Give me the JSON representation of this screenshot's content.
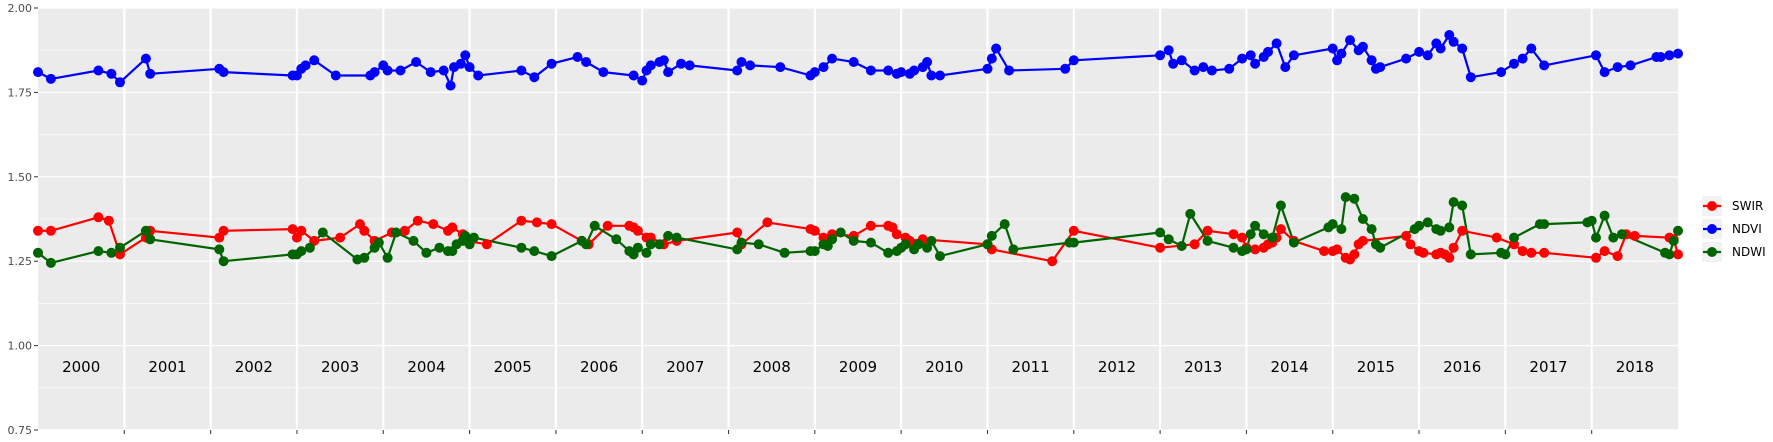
{
  "chart_data": {
    "type": "line",
    "title": "",
    "xlabel": "",
    "ylabel": "",
    "ylim": [
      0.75,
      2.0
    ],
    "yticks": [
      "0.75",
      "1.00",
      "1.25",
      "1.50",
      "1.75",
      "2.00"
    ],
    "xlim": [
      2000.0,
      2019.0
    ],
    "years": [
      "2000",
      "2001",
      "2002",
      "2003",
      "2004",
      "2005",
      "2006",
      "2007",
      "2008",
      "2009",
      "2010",
      "2011",
      "2012",
      "2013",
      "2014",
      "2015",
      "2016",
      "2017",
      "2018"
    ],
    "grid": true,
    "legend_position": "right",
    "series": [
      {
        "name": "SWIR",
        "color": "#ff0000",
        "x": [
          2000.0,
          2000.15,
          2000.7,
          2000.82,
          2000.95,
          2001.25,
          2001.3,
          2002.1,
          2002.15,
          2002.95,
          2003.0,
          2003.05,
          2003.2,
          2003.5,
          2003.73,
          2003.78,
          2003.9,
          2004.1,
          2004.25,
          2004.4,
          2004.58,
          2004.75,
          2004.8,
          2004.92,
          2004.97,
          2005.2,
          2005.6,
          2005.78,
          2005.95,
          2006.3,
          2006.38,
          2006.6,
          2006.85,
          2006.9,
          2006.95,
          2007.05,
          2007.1,
          2007.25,
          2007.4,
          2008.1,
          2008.15,
          2008.45,
          2008.95,
          2009.0,
          2009.1,
          2009.2,
          2009.45,
          2009.65,
          2009.85,
          2009.9,
          2009.95,
          2010.05,
          2010.1,
          2010.25,
          2011.0,
          2011.05,
          2011.75,
          2012.0,
          2013.0,
          2013.4,
          2013.55,
          2013.85,
          2013.95,
          2014.0,
          2014.1,
          2014.2,
          2014.25,
          2014.3,
          2014.35,
          2014.4,
          2014.55,
          2014.9,
          2015.0,
          2015.05,
          2015.15,
          2015.2,
          2015.25,
          2015.3,
          2015.35,
          2015.85,
          2015.9,
          2016.0,
          2016.05,
          2016.2,
          2016.25,
          2016.3,
          2016.35,
          2016.4,
          2016.5,
          2016.9,
          2017.1,
          2017.2,
          2017.3,
          2017.45,
          2018.05,
          2018.15,
          2018.3,
          2018.4,
          2018.5,
          2018.9,
          2018.95,
          2019.0
        ],
        "values": [
          1.34,
          1.34,
          1.38,
          1.37,
          1.27,
          1.32,
          1.34,
          1.32,
          1.34,
          1.345,
          1.32,
          1.34,
          1.31,
          1.32,
          1.36,
          1.34,
          1.31,
          1.335,
          1.34,
          1.37,
          1.36,
          1.34,
          1.35,
          1.33,
          1.31,
          1.3,
          1.37,
          1.365,
          1.36,
          1.31,
          1.3,
          1.355,
          1.355,
          1.35,
          1.34,
          1.32,
          1.32,
          1.3,
          1.31,
          1.335,
          1.3,
          1.365,
          1.345,
          1.34,
          1.32,
          1.33,
          1.325,
          1.355,
          1.355,
          1.35,
          1.33,
          1.32,
          1.31,
          1.315,
          1.3,
          1.285,
          1.25,
          1.34,
          1.29,
          1.3,
          1.34,
          1.33,
          1.32,
          1.29,
          1.285,
          1.29,
          1.3,
          1.305,
          1.32,
          1.345,
          1.31,
          1.28,
          1.28,
          1.285,
          1.26,
          1.255,
          1.27,
          1.3,
          1.31,
          1.325,
          1.3,
          1.28,
          1.275,
          1.27,
          1.275,
          1.27,
          1.26,
          1.29,
          1.34,
          1.32,
          1.3,
          1.28,
          1.275,
          1.275,
          1.26,
          1.28,
          1.265,
          1.33,
          1.325,
          1.32,
          1.315,
          1.27
        ]
      },
      {
        "name": "NDVI",
        "color": "#0000ff",
        "x": [
          2000.0,
          2000.15,
          2000.7,
          2000.85,
          2000.95,
          2001.25,
          2001.3,
          2002.1,
          2002.15,
          2002.95,
          2003.0,
          2003.05,
          2003.1,
          2003.2,
          2003.45,
          2003.85,
          2003.9,
          2004.0,
          2004.05,
          2004.2,
          2004.38,
          2004.55,
          2004.7,
          2004.78,
          2004.82,
          2004.9,
          2004.95,
          2005.0,
          2005.1,
          2005.6,
          2005.75,
          2005.95,
          2006.25,
          2006.35,
          2006.55,
          2006.9,
          2007.0,
          2007.05,
          2007.1,
          2007.2,
          2007.25,
          2007.3,
          2007.45,
          2007.55,
          2008.1,
          2008.15,
          2008.25,
          2008.6,
          2008.95,
          2009.0,
          2009.1,
          2009.2,
          2009.45,
          2009.65,
          2009.85,
          2009.95,
          2010.0,
          2010.1,
          2010.15,
          2010.25,
          2010.3,
          2010.35,
          2010.45,
          2011.0,
          2011.05,
          2011.1,
          2011.25,
          2011.9,
          2012.0,
          2013.0,
          2013.1,
          2013.15,
          2013.25,
          2013.4,
          2013.5,
          2013.6,
          2013.8,
          2013.95,
          2014.05,
          2014.1,
          2014.2,
          2014.25,
          2014.35,
          2014.45,
          2014.55,
          2015.0,
          2015.05,
          2015.1,
          2015.2,
          2015.3,
          2015.35,
          2015.45,
          2015.5,
          2015.55,
          2015.85,
          2016.0,
          2016.1,
          2016.2,
          2016.25,
          2016.35,
          2016.4,
          2016.5,
          2016.6,
          2016.95,
          2017.1,
          2017.2,
          2017.3,
          2017.45,
          2018.05,
          2018.15,
          2018.3,
          2018.45,
          2018.75,
          2018.8,
          2018.9,
          2019.0
        ],
        "values": [
          1.81,
          1.79,
          1.815,
          1.805,
          1.78,
          1.85,
          1.805,
          1.82,
          1.81,
          1.8,
          1.8,
          1.82,
          1.83,
          1.845,
          1.8,
          1.8,
          1.81,
          1.83,
          1.815,
          1.815,
          1.84,
          1.81,
          1.815,
          1.77,
          1.825,
          1.835,
          1.86,
          1.825,
          1.8,
          1.815,
          1.795,
          1.835,
          1.855,
          1.84,
          1.81,
          1.8,
          1.785,
          1.815,
          1.83,
          1.84,
          1.845,
          1.81,
          1.835,
          1.83,
          1.815,
          1.84,
          1.83,
          1.825,
          1.8,
          1.81,
          1.825,
          1.85,
          1.84,
          1.815,
          1.815,
          1.805,
          1.81,
          1.805,
          1.815,
          1.825,
          1.84,
          1.8,
          1.8,
          1.82,
          1.85,
          1.88,
          1.815,
          1.82,
          1.845,
          1.86,
          1.875,
          1.835,
          1.845,
          1.815,
          1.825,
          1.815,
          1.82,
          1.85,
          1.86,
          1.835,
          1.855,
          1.87,
          1.895,
          1.825,
          1.86,
          1.88,
          1.845,
          1.865,
          1.905,
          1.875,
          1.885,
          1.845,
          1.82,
          1.825,
          1.85,
          1.87,
          1.86,
          1.895,
          1.88,
          1.92,
          1.9,
          1.88,
          1.795,
          1.81,
          1.835,
          1.85,
          1.88,
          1.83,
          1.86,
          1.81,
          1.825,
          1.83,
          1.855,
          1.855,
          1.86,
          1.865
        ]
      },
      {
        "name": "NDWI",
        "color": "#006400",
        "x": [
          2000.0,
          2000.15,
          2000.7,
          2000.85,
          2000.95,
          2001.25,
          2001.3,
          2002.1,
          2002.15,
          2002.95,
          2003.0,
          2003.05,
          2003.15,
          2003.3,
          2003.7,
          2003.78,
          2003.9,
          2003.95,
          2004.05,
          2004.15,
          2004.35,
          2004.5,
          2004.65,
          2004.75,
          2004.8,
          2004.85,
          2004.92,
          2004.95,
          2005.0,
          2005.05,
          2005.6,
          2005.75,
          2005.95,
          2006.3,
          2006.35,
          2006.45,
          2006.7,
          2006.85,
          2006.9,
          2006.95,
          2007.05,
          2007.1,
          2007.2,
          2007.3,
          2007.4,
          2008.1,
          2008.15,
          2008.35,
          2008.65,
          2008.95,
          2009.0,
          2009.1,
          2009.15,
          2009.2,
          2009.3,
          2009.45,
          2009.65,
          2009.85,
          2009.95,
          2010.0,
          2010.05,
          2010.15,
          2010.2,
          2010.3,
          2010.35,
          2010.45,
          2011.0,
          2011.05,
          2011.2,
          2011.3,
          2011.95,
          2012.0,
          2013.0,
          2013.1,
          2013.25,
          2013.35,
          2013.55,
          2013.85,
          2013.95,
          2014.0,
          2014.05,
          2014.1,
          2014.2,
          2014.3,
          2014.4,
          2014.55,
          2014.95,
          2015.0,
          2015.1,
          2015.15,
          2015.25,
          2015.35,
          2015.45,
          2015.5,
          2015.55,
          2015.95,
          2016.0,
          2016.1,
          2016.2,
          2016.25,
          2016.35,
          2016.4,
          2016.5,
          2016.6,
          2016.95,
          2017.0,
          2017.1,
          2017.4,
          2017.45,
          2017.95,
          2018.0,
          2018.05,
          2018.15,
          2018.25,
          2018.35,
          2018.85,
          2018.9,
          2018.95,
          2019.0
        ],
        "values": [
          1.275,
          1.245,
          1.28,
          1.275,
          1.29,
          1.34,
          1.315,
          1.285,
          1.25,
          1.27,
          1.27,
          1.28,
          1.29,
          1.335,
          1.255,
          1.26,
          1.29,
          1.305,
          1.26,
          1.335,
          1.31,
          1.275,
          1.29,
          1.28,
          1.28,
          1.3,
          1.31,
          1.325,
          1.3,
          1.32,
          1.29,
          1.28,
          1.265,
          1.31,
          1.3,
          1.355,
          1.315,
          1.28,
          1.27,
          1.29,
          1.275,
          1.3,
          1.3,
          1.325,
          1.32,
          1.285,
          1.305,
          1.3,
          1.275,
          1.28,
          1.28,
          1.3,
          1.295,
          1.315,
          1.335,
          1.31,
          1.305,
          1.275,
          1.28,
          1.29,
          1.3,
          1.285,
          1.3,
          1.29,
          1.31,
          1.265,
          1.3,
          1.325,
          1.36,
          1.285,
          1.305,
          1.305,
          1.335,
          1.315,
          1.295,
          1.39,
          1.31,
          1.29,
          1.28,
          1.285,
          1.33,
          1.355,
          1.33,
          1.32,
          1.415,
          1.305,
          1.35,
          1.36,
          1.345,
          1.44,
          1.435,
          1.375,
          1.345,
          1.3,
          1.29,
          1.345,
          1.355,
          1.365,
          1.345,
          1.34,
          1.35,
          1.425,
          1.415,
          1.27,
          1.275,
          1.27,
          1.32,
          1.36,
          1.36,
          1.365,
          1.37,
          1.32,
          1.385,
          1.32,
          1.33,
          1.275,
          1.27,
          1.31,
          1.34
        ]
      }
    ]
  }
}
